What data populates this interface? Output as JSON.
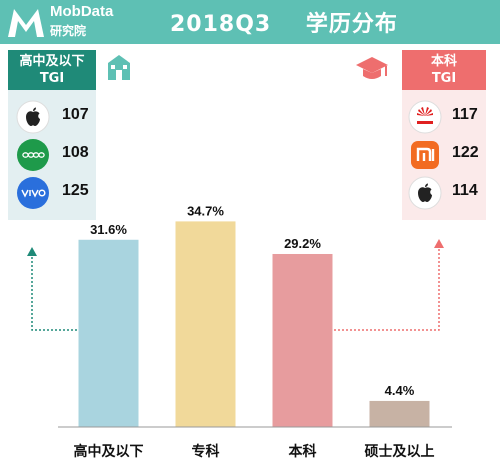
{
  "header": {
    "brand_en": "MobData",
    "brand_cn": "研究院",
    "title": "2018Q3    学历分布",
    "color": "#5ec0b4"
  },
  "left_panel": {
    "title_line1": "高中及以下",
    "title_line2": "TGI",
    "header_color": "#1f8a78",
    "bg_color": "#e3eff1",
    "items": [
      {
        "brand": "Apple",
        "icon": "apple-icon",
        "tgi": "107"
      },
      {
        "brand": "OPPO",
        "icon": "oppo-logo",
        "tgi": "108"
      },
      {
        "brand": "vivo",
        "icon": "vivo-logo",
        "tgi": "125"
      }
    ]
  },
  "right_panel": {
    "title_line1": "本科",
    "title_line2": "TGI",
    "header_color": "#ee6e6e",
    "bg_color": "#fbeaea",
    "items": [
      {
        "brand": "HUAWEI",
        "icon": "huawei-logo",
        "tgi": "117"
      },
      {
        "brand": "Xiaomi",
        "icon": "mi-logo",
        "tgi": "122"
      },
      {
        "brand": "Apple",
        "icon": "apple-icon",
        "tgi": "114"
      }
    ]
  },
  "decor": {
    "left_icon": "school-building-icon",
    "right_icon": "graduation-cap-icon"
  },
  "chart_data": {
    "type": "bar",
    "categories": [
      "高中及以下",
      "专科",
      "本科",
      "硕士及以上"
    ],
    "values": [
      31.6,
      34.7,
      29.2,
      4.4
    ],
    "labels": [
      "31.6%",
      "34.7%",
      "29.2%",
      "4.4%"
    ],
    "colors": [
      "#a9d4df",
      "#f1d99a",
      "#e79c9e",
      "#c7b2a4"
    ],
    "ylim": [
      0,
      40
    ],
    "grid": false,
    "legend": false,
    "title": "",
    "xlabel": "",
    "ylabel": ""
  }
}
